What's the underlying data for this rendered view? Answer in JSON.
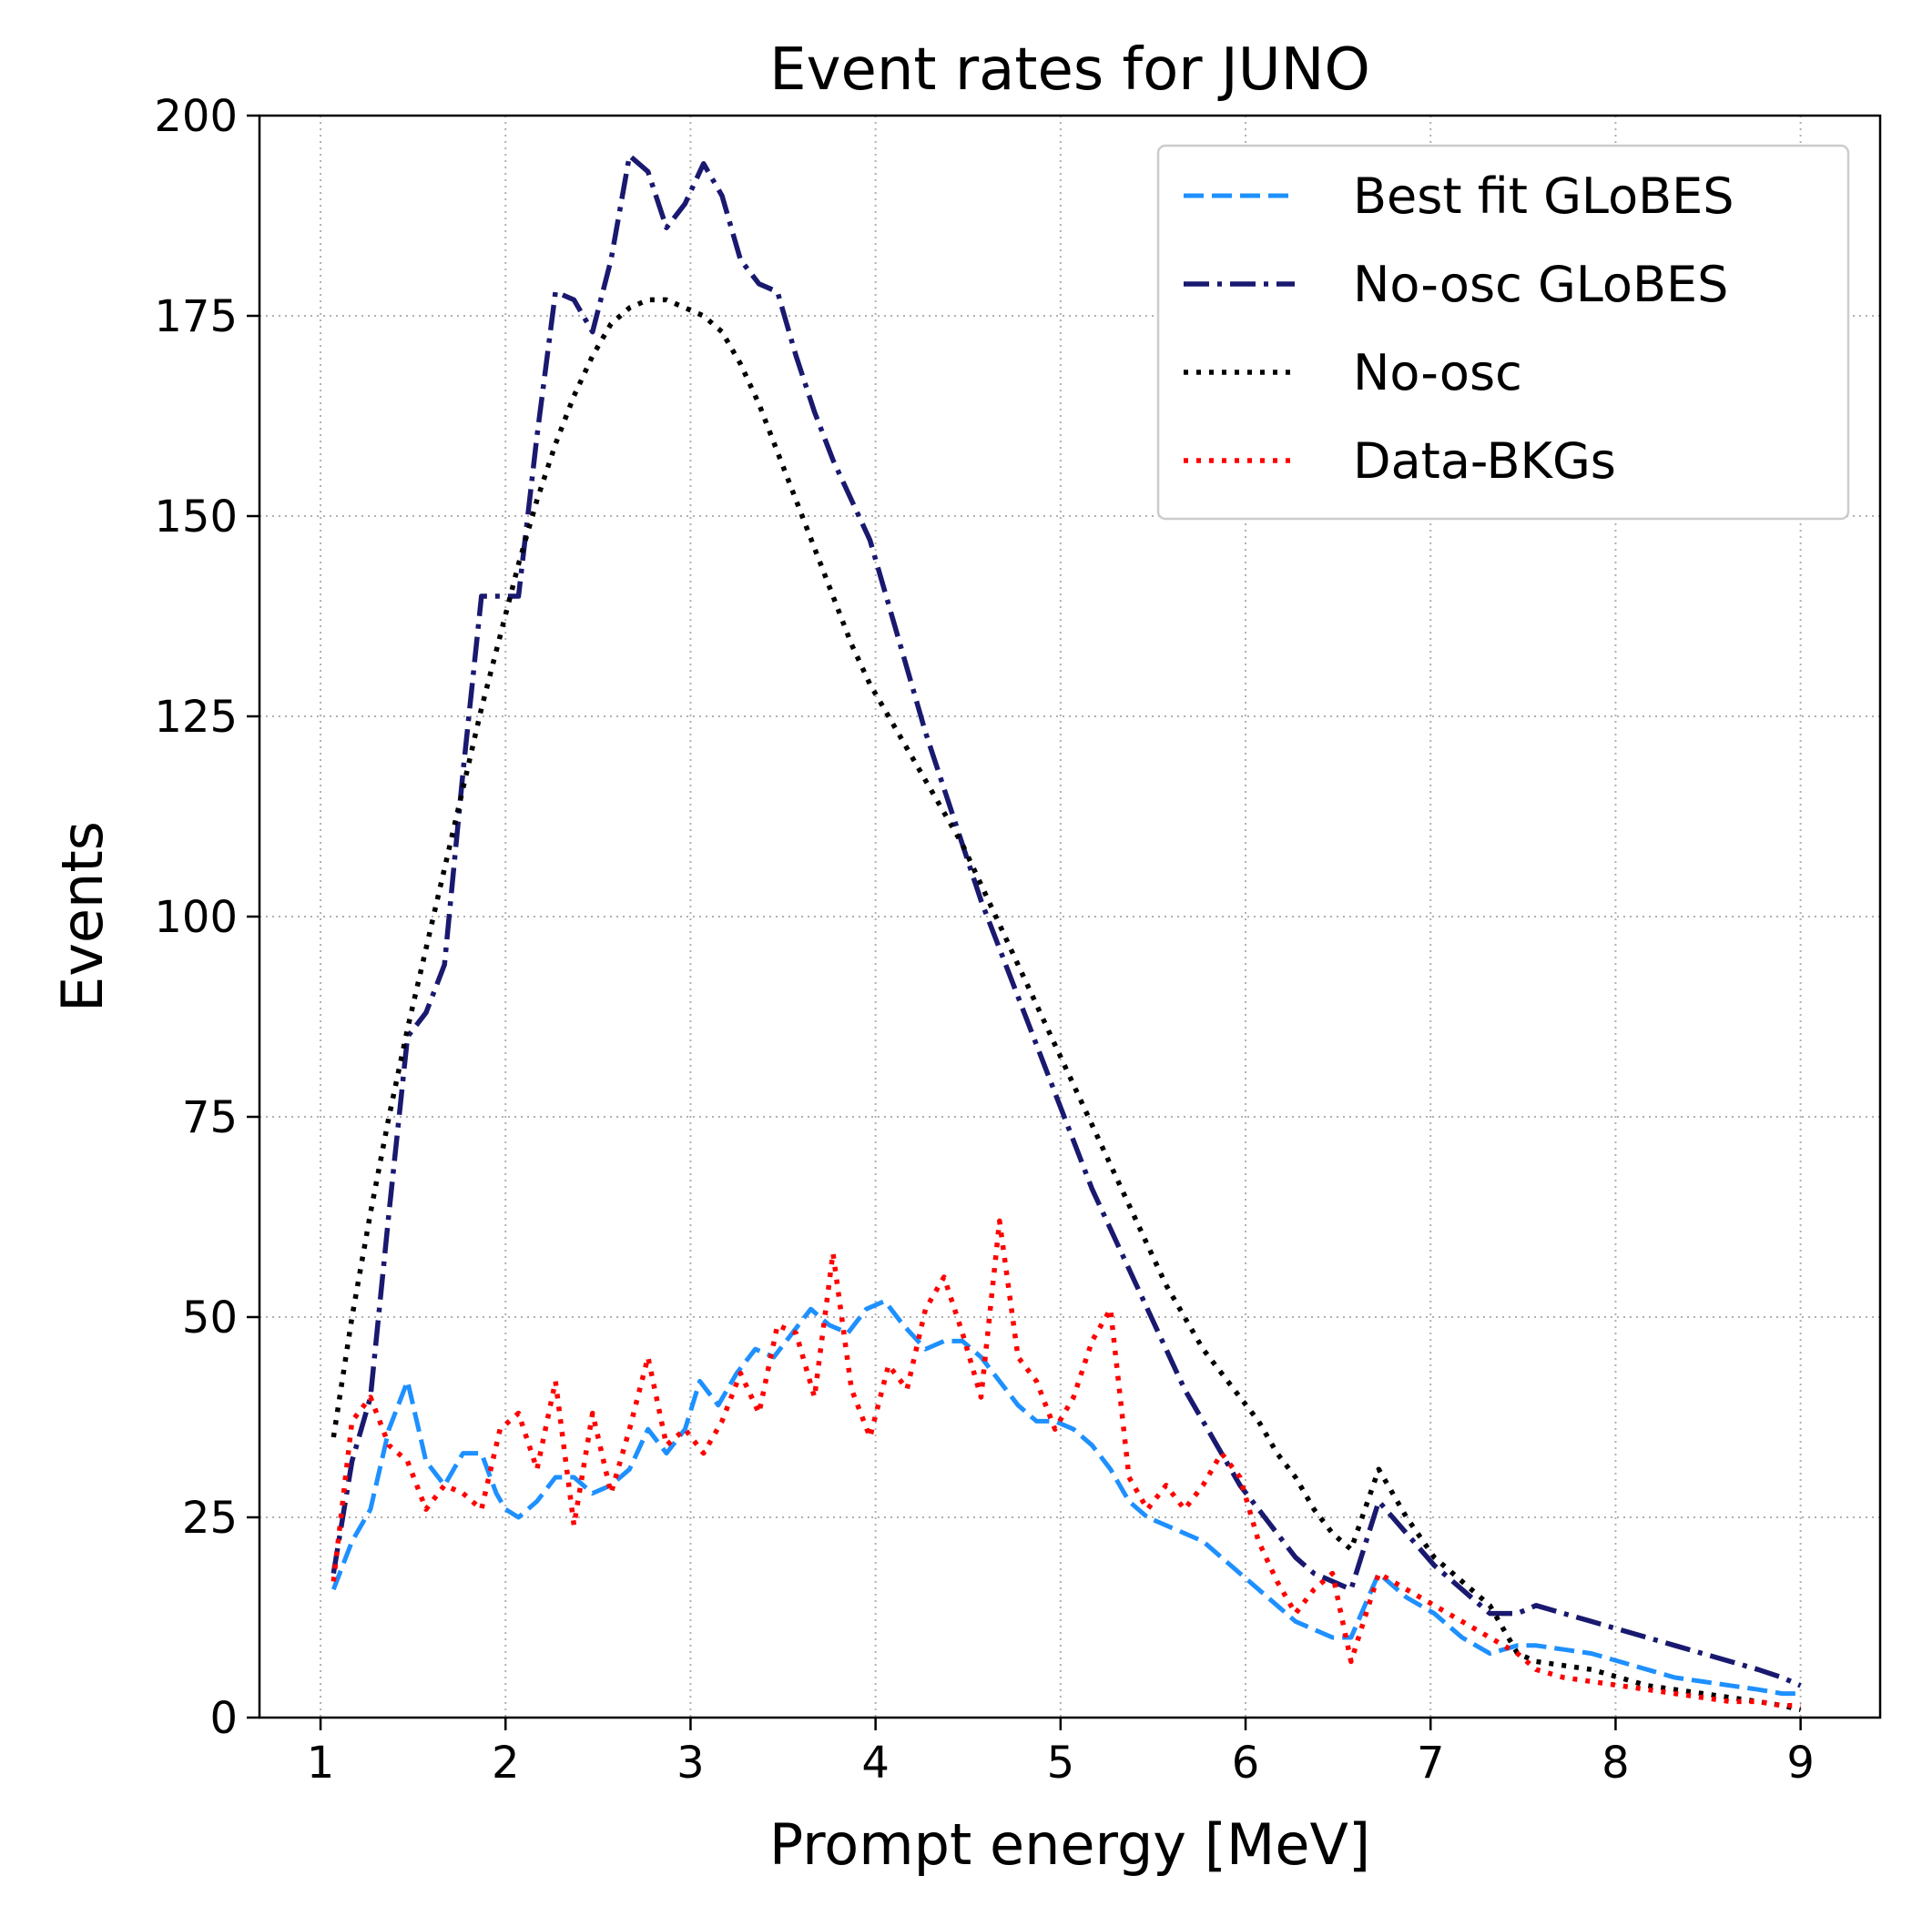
{
  "chart_data": {
    "type": "line",
    "title": "Event rates for JUNO",
    "xlabel": "Prompt energy [MeV]",
    "ylabel": "Events",
    "xlim": [
      0.67,
      9.43
    ],
    "ylim": [
      0,
      200
    ],
    "xticks": [
      1,
      2,
      3,
      4,
      5,
      6,
      7,
      8,
      9
    ],
    "yticks": [
      0,
      25,
      50,
      75,
      100,
      125,
      150,
      175,
      200
    ],
    "xtick_labels": [
      "1",
      "2",
      "3",
      "4",
      "5",
      "6",
      "7",
      "8",
      "9"
    ],
    "ytick_labels": [
      "0",
      "25",
      "50",
      "75",
      "100",
      "125",
      "150",
      "175",
      "200"
    ],
    "grid": true,
    "legend_position": "top-right",
    "series": [
      {
        "name": "Best fit GLoBES",
        "color": "#1e90ff",
        "style": "dashed",
        "x": [
          1.07,
          1.17,
          1.27,
          1.37,
          1.47,
          1.57,
          1.67,
          1.77,
          1.87,
          1.95,
          2.0,
          2.07,
          2.17,
          2.27,
          2.37,
          2.47,
          2.57,
          2.67,
          2.77,
          2.87,
          2.97,
          3.05,
          3.15,
          3.25,
          3.35,
          3.45,
          3.55,
          3.65,
          3.75,
          3.85,
          3.95,
          4.05,
          4.15,
          4.27,
          4.37,
          4.47,
          4.57,
          4.67,
          4.77,
          4.87,
          4.97,
          5.07,
          5.17,
          5.27,
          5.37,
          5.47,
          5.57,
          5.67,
          5.77,
          5.87,
          5.97,
          6.07,
          6.17,
          6.27,
          6.37,
          6.47,
          6.57,
          6.72,
          6.87,
          7.02,
          7.17,
          7.32,
          7.47,
          7.57,
          7.72,
          7.87,
          8.02,
          8.17,
          8.32,
          8.47,
          8.62,
          8.77,
          8.9,
          9.0
        ],
        "y": [
          16,
          22,
          26,
          36,
          42,
          32,
          29,
          33,
          33,
          28,
          26,
          25,
          27,
          30,
          30,
          28,
          29,
          31,
          36,
          33,
          36,
          42,
          39,
          43,
          46,
          45,
          48,
          51,
          49,
          48,
          51,
          52,
          49,
          46,
          47,
          47,
          45,
          42,
          39,
          37,
          37,
          36,
          34,
          31,
          27,
          25,
          24,
          23,
          22,
          20,
          18,
          16,
          14,
          12,
          11,
          10,
          10,
          18,
          15,
          13,
          10,
          8,
          9,
          9,
          8.5,
          8,
          7,
          6,
          5,
          4.5,
          4,
          3.5,
          3,
          3
        ]
      },
      {
        "name": "No-osc GLoBES",
        "color": "#191970",
        "style": "dashdot",
        "x": [
          1.07,
          1.17,
          1.27,
          1.37,
          1.47,
          1.57,
          1.67,
          1.77,
          1.87,
          1.97,
          2.07,
          2.17,
          2.27,
          2.37,
          2.47,
          2.57,
          2.67,
          2.77,
          2.87,
          2.97,
          3.07,
          3.17,
          3.27,
          3.37,
          3.47,
          3.57,
          3.67,
          3.77,
          3.87,
          3.97,
          4.07,
          4.17,
          4.27,
          4.37,
          4.47,
          4.57,
          4.67,
          4.77,
          4.87,
          4.97,
          5.07,
          5.17,
          5.27,
          5.37,
          5.47,
          5.57,
          5.67,
          5.77,
          5.87,
          5.97,
          6.07,
          6.17,
          6.27,
          6.37,
          6.47,
          6.57,
          6.72,
          6.87,
          7.02,
          7.17,
          7.32,
          7.47,
          7.57,
          7.72,
          7.87,
          8.02,
          8.17,
          8.32,
          8.47,
          8.62,
          8.77,
          8.9,
          9.0
        ],
        "y": [
          18,
          32,
          40,
          63,
          85,
          88,
          94,
          118,
          140,
          140,
          140,
          160,
          178,
          177,
          173,
          182,
          195,
          193,
          186,
          189,
          194,
          190,
          182,
          179,
          178,
          170,
          163,
          157,
          152,
          147,
          139,
          131,
          123,
          116,
          109,
          102,
          96,
          90,
          84,
          78,
          72,
          66,
          61,
          56,
          51,
          46,
          41,
          37,
          33,
          29,
          26,
          23,
          20,
          18,
          17,
          16,
          27,
          23,
          19,
          16,
          13,
          13,
          14,
          13,
          12,
          11,
          10,
          9,
          8,
          7,
          6,
          5,
          4
        ]
      },
      {
        "name": "No-osc",
        "color": "#000000",
        "style": "dotted",
        "x": [
          1.07,
          1.17,
          1.27,
          1.37,
          1.47,
          1.57,
          1.67,
          1.77,
          1.87,
          1.97,
          2.07,
          2.17,
          2.27,
          2.37,
          2.47,
          2.57,
          2.67,
          2.77,
          2.87,
          2.97,
          3.07,
          3.17,
          3.27,
          3.37,
          3.47,
          3.57,
          3.67,
          3.77,
          3.87,
          3.97,
          4.07,
          4.17,
          4.27,
          4.37,
          4.47,
          4.57,
          4.67,
          4.77,
          4.87,
          4.97,
          5.07,
          5.17,
          5.27,
          5.37,
          5.47,
          5.57,
          5.67,
          5.77,
          5.87,
          5.97,
          6.07,
          6.17,
          6.27,
          6.37,
          6.47,
          6.57,
          6.72,
          6.87,
          7.02,
          7.17,
          7.32,
          7.47,
          7.57,
          7.72,
          7.87,
          8.02,
          8.17,
          8.32,
          8.47,
          8.62,
          8.77,
          8.9,
          9.0
        ],
        "y": [
          35,
          50,
          63,
          75,
          86,
          96,
          106,
          116,
          126,
          135,
          144,
          152,
          159,
          165,
          170,
          174,
          176,
          177,
          177,
          176,
          175,
          173,
          169,
          164,
          158,
          152,
          146,
          140,
          134,
          129,
          125,
          121,
          117,
          113,
          109,
          104,
          99,
          94,
          89,
          84,
          79,
          74,
          69,
          64,
          59,
          54,
          50,
          46,
          43,
          40,
          37,
          33,
          30,
          26,
          23,
          21,
          31,
          25,
          20,
          17,
          14,
          8,
          7,
          6.5,
          6,
          5,
          4,
          3.5,
          3,
          2.5,
          2,
          1.5,
          1
        ]
      },
      {
        "name": "Data-BKGs",
        "color": "#ff0000",
        "style": "dotted",
        "x": [
          1.07,
          1.17,
          1.27,
          1.37,
          1.47,
          1.57,
          1.67,
          1.77,
          1.87,
          1.97,
          2.07,
          2.17,
          2.27,
          2.37,
          2.47,
          2.57,
          2.67,
          2.77,
          2.87,
          2.97,
          3.07,
          3.17,
          3.27,
          3.37,
          3.47,
          3.57,
          3.67,
          3.77,
          3.87,
          3.97,
          4.07,
          4.17,
          4.27,
          4.37,
          4.47,
          4.57,
          4.67,
          4.77,
          4.87,
          4.97,
          5.07,
          5.17,
          5.27,
          5.37,
          5.47,
          5.57,
          5.67,
          5.77,
          5.87,
          5.97,
          6.07,
          6.17,
          6.27,
          6.37,
          6.47,
          6.57,
          6.72,
          6.87,
          7.02,
          7.17,
          7.32,
          7.47,
          7.57,
          7.72,
          7.87,
          8.02,
          8.17,
          8.32,
          8.47,
          8.62,
          8.77,
          8.9,
          9.0
        ],
        "y": [
          17,
          37,
          40,
          34,
          32,
          26,
          29,
          28,
          26,
          36,
          38,
          31,
          42,
          24,
          38,
          28,
          36,
          45,
          34,
          36,
          33,
          37,
          43,
          38,
          49,
          48,
          40,
          58,
          41,
          35,
          44,
          41,
          51,
          55,
          48,
          40,
          62,
          45,
          42,
          36,
          40,
          47,
          51,
          30,
          26,
          29,
          26,
          29,
          33,
          30,
          22,
          17,
          13,
          16,
          18,
          7,
          18,
          16,
          14,
          12,
          10,
          8,
          6,
          5,
          4.5,
          4,
          3.5,
          3,
          2.5,
          2,
          2,
          1.5,
          1.5
        ]
      }
    ]
  }
}
